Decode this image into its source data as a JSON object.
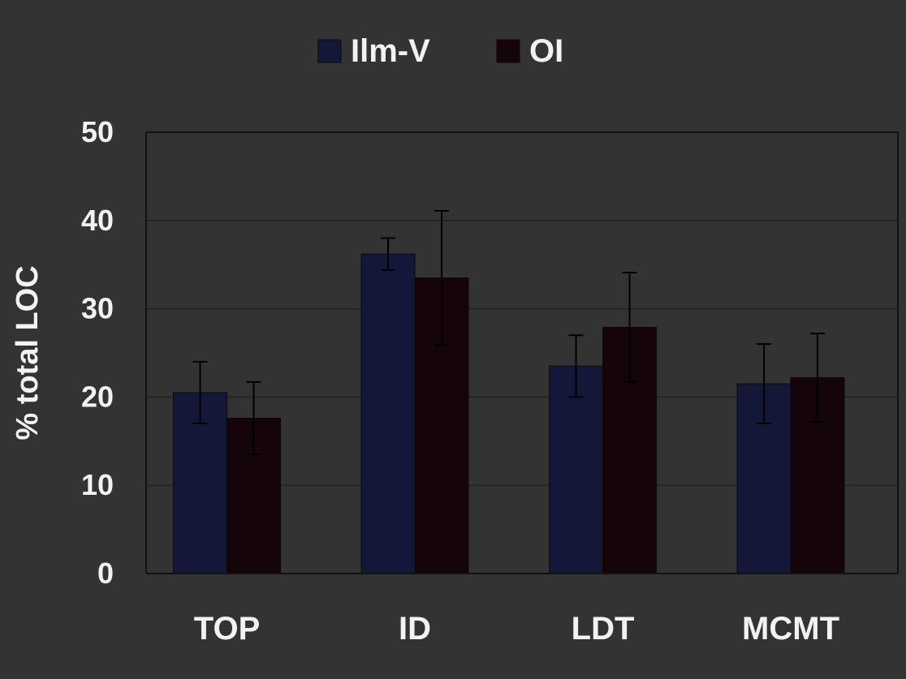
{
  "chart_data": {
    "type": "bar",
    "title": "",
    "xlabel": "",
    "ylabel": "% total LOC",
    "categories": [
      "TOP",
      "ID",
      "LDT",
      "MCMT"
    ],
    "series": [
      {
        "name": "Ilm-V",
        "color": "#141738",
        "values": [
          20.5,
          36.2,
          23.5,
          21.5
        ],
        "errors": [
          3.5,
          1.8,
          3.5,
          4.5
        ]
      },
      {
        "name": "OI",
        "color": "#150409",
        "values": [
          17.6,
          33.5,
          27.9,
          22.2
        ],
        "errors": [
          4.1,
          7.6,
          6.2,
          5.0
        ]
      }
    ],
    "ylim": [
      0,
      50
    ],
    "yticks": [
      0,
      10,
      20,
      30,
      40,
      50
    ],
    "grid": true,
    "legend": "top"
  }
}
